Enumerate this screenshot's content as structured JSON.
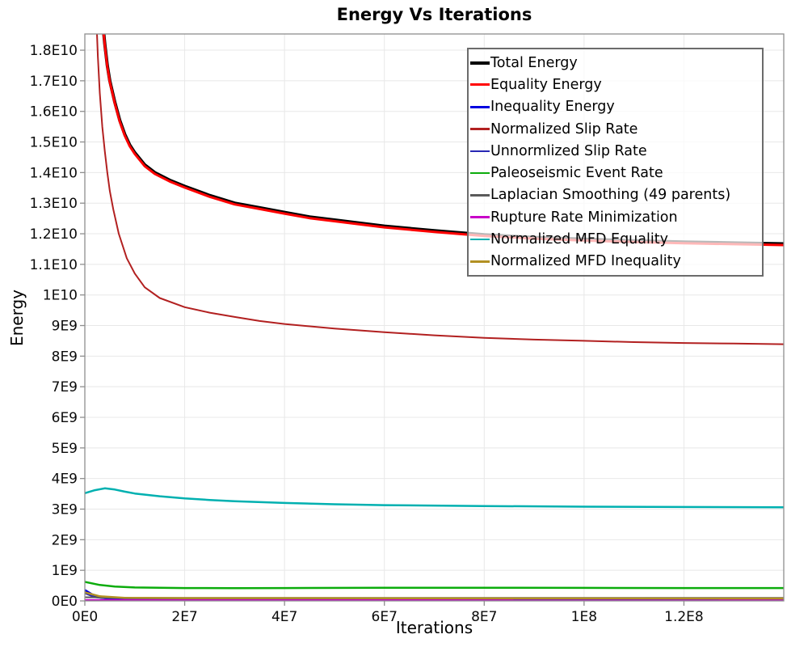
{
  "chart_data": {
    "type": "line",
    "title": "Energy Vs Iterations",
    "xlabel": "Iterations",
    "ylabel": "Energy",
    "xlim": [
      0,
      140000000
    ],
    "ylim": [
      0,
      18530000000
    ],
    "grid": true,
    "legend_position": "top-right",
    "x_ticks": [
      {
        "v": 0,
        "t": "0E0"
      },
      {
        "v": 20000000,
        "t": "2E7"
      },
      {
        "v": 40000000,
        "t": "4E7"
      },
      {
        "v": 60000000,
        "t": "6E7"
      },
      {
        "v": 80000000,
        "t": "8E7"
      },
      {
        "v": 100000000,
        "t": "1E8"
      },
      {
        "v": 120000000,
        "t": "1.2E8"
      }
    ],
    "y_ticks": [
      {
        "v": 0,
        "t": "0E0"
      },
      {
        "v": 1000000000.0,
        "t": "1E9"
      },
      {
        "v": 2000000000.0,
        "t": "2E9"
      },
      {
        "v": 3000000000.0,
        "t": "3E9"
      },
      {
        "v": 4000000000.0,
        "t": "4E9"
      },
      {
        "v": 5000000000.0,
        "t": "5E9"
      },
      {
        "v": 6000000000.0,
        "t": "6E9"
      },
      {
        "v": 7000000000.0,
        "t": "7E9"
      },
      {
        "v": 8000000000.0,
        "t": "8E9"
      },
      {
        "v": 9000000000.0,
        "t": "9E9"
      },
      {
        "v": 10000000000.0,
        "t": "1E10"
      },
      {
        "v": 11000000000.0,
        "t": "1.1E10"
      },
      {
        "v": 12000000000.0,
        "t": "1.2E10"
      },
      {
        "v": 13000000000.0,
        "t": "1.3E10"
      },
      {
        "v": 14000000000.0,
        "t": "1.4E10"
      },
      {
        "v": 15000000000.0,
        "t": "1.5E10"
      },
      {
        "v": 16000000000.0,
        "t": "1.6E10"
      },
      {
        "v": 17000000000.0,
        "t": "1.7E10"
      },
      {
        "v": 18000000000.0,
        "t": "1.8E10"
      }
    ],
    "series": [
      {
        "name": "Total Energy",
        "color": "#000000",
        "width": 4,
        "points": [
          [
            3200000.0,
            19500000000.0
          ],
          [
            4000000.0,
            18200000000.0
          ],
          [
            4500000.0,
            17500000000.0
          ],
          [
            5000000.0,
            17000000000.0
          ],
          [
            6000000.0,
            16300000000.0
          ],
          [
            7000000.0,
            15700000000.0
          ],
          [
            8000000.0,
            15250000000.0
          ],
          [
            9000000.0,
            14900000000.0
          ],
          [
            10000000.0,
            14650000000.0
          ],
          [
            12000000.0,
            14250000000.0
          ],
          [
            14000000.0,
            14000000000.0
          ],
          [
            17000000.0,
            13750000000.0
          ],
          [
            20000000.0,
            13550000000.0
          ],
          [
            25000000.0,
            13250000000.0
          ],
          [
            30000000.0,
            13000000000.0
          ],
          [
            35000000.0,
            12850000000.0
          ],
          [
            40000000.0,
            12700000000.0
          ],
          [
            45000000.0,
            12550000000.0
          ],
          [
            50000000.0,
            12450000000.0
          ],
          [
            60000000.0,
            12250000000.0
          ],
          [
            70000000.0,
            12100000000.0
          ],
          [
            80000000.0,
            11970000000.0
          ],
          [
            90000000.0,
            11880000000.0
          ],
          [
            100000000.0,
            11820000000.0
          ],
          [
            110000000.0,
            11770000000.0
          ],
          [
            120000000.0,
            11730000000.0
          ],
          [
            130000000.0,
            11700000000.0
          ],
          [
            140000000.0,
            11670000000.0
          ]
        ]
      },
      {
        "name": "Equality Energy",
        "color": "#ff0000",
        "width": 3,
        "points": [
          [
            3200000.0,
            19460000000.0
          ],
          [
            4000000.0,
            18160000000.0
          ],
          [
            4500000.0,
            17460000000.0
          ],
          [
            5000000.0,
            16960000000.0
          ],
          [
            6000000.0,
            16260000000.0
          ],
          [
            7000000.0,
            15660000000.0
          ],
          [
            8000000.0,
            15210000000.0
          ],
          [
            9000000.0,
            14860000000.0
          ],
          [
            10000000.0,
            14610000000.0
          ],
          [
            12000000.0,
            14210000000.0
          ],
          [
            14000000.0,
            13960000000.0
          ],
          [
            17000000.0,
            13710000000.0
          ],
          [
            20000000.0,
            13510000000.0
          ],
          [
            25000000.0,
            13210000000.0
          ],
          [
            30000000.0,
            12960000000.0
          ],
          [
            35000000.0,
            12810000000.0
          ],
          [
            40000000.0,
            12660000000.0
          ],
          [
            45000000.0,
            12510000000.0
          ],
          [
            50000000.0,
            12410000000.0
          ],
          [
            60000000.0,
            12210000000.0
          ],
          [
            70000000.0,
            12060000000.0
          ],
          [
            80000000.0,
            11930000000.0
          ],
          [
            90000000.0,
            11840000000.0
          ],
          [
            100000000.0,
            11780000000.0
          ],
          [
            110000000.0,
            11730000000.0
          ],
          [
            120000000.0,
            11690000000.0
          ],
          [
            130000000.0,
            11660000000.0
          ],
          [
            140000000.0,
            11630000000.0
          ]
        ]
      },
      {
        "name": "Inequality Energy",
        "color": "#0000e0",
        "width": 3,
        "points": [
          [
            0,
            350000000.0
          ],
          [
            1500000.0,
            200000000.0
          ],
          [
            3000000.0,
            120000000.0
          ],
          [
            5000000.0,
            80000000.0
          ],
          [
            10000000.0,
            60000000.0
          ],
          [
            20000000.0,
            50000000.0
          ],
          [
            140000000.0,
            50000000.0
          ]
        ]
      },
      {
        "name": "Normalized Slip Rate",
        "color": "#b22020",
        "width": 2,
        "points": [
          [
            2200000.0,
            19500000000.0
          ],
          [
            2600000.0,
            17800000000.0
          ],
          [
            3000000.0,
            16600000000.0
          ],
          [
            3500000.0,
            15500000000.0
          ],
          [
            4000000.0,
            14700000000.0
          ],
          [
            4500000.0,
            14000000000.0
          ],
          [
            5000000.0,
            13400000000.0
          ],
          [
            5700000.0,
            12800000000.0
          ],
          [
            6800000.0,
            12000000000.0
          ],
          [
            8400000.0,
            11200000000.0
          ],
          [
            10000000.0,
            10700000000.0
          ],
          [
            12000000.0,
            10250000000.0
          ],
          [
            15000000.0,
            9900000000.0
          ],
          [
            20000000.0,
            9600000000.0
          ],
          [
            25000000.0,
            9420000000.0
          ],
          [
            30000000.0,
            9280000000.0
          ],
          [
            35000000.0,
            9150000000.0
          ],
          [
            40000000.0,
            9050000000.0
          ],
          [
            50000000.0,
            8900000000.0
          ],
          [
            60000000.0,
            8780000000.0
          ],
          [
            70000000.0,
            8680000000.0
          ],
          [
            80000000.0,
            8600000000.0
          ],
          [
            90000000.0,
            8540000000.0
          ],
          [
            100000000.0,
            8500000000.0
          ],
          [
            110000000.0,
            8460000000.0
          ],
          [
            120000000.0,
            8430000000.0
          ],
          [
            130000000.0,
            8410000000.0
          ],
          [
            140000000.0,
            8390000000.0
          ]
        ]
      },
      {
        "name": "Unnormlized Slip Rate",
        "color": "#2828b4",
        "width": 2,
        "points": [
          [
            0,
            250000000.0
          ],
          [
            2000000.0,
            120000000.0
          ],
          [
            5000000.0,
            70000000.0
          ],
          [
            10000000.0,
            50000000.0
          ],
          [
            140000000.0,
            40000000.0
          ]
        ]
      },
      {
        "name": "Paleoseismic Event Rate",
        "color": "#0cac0c",
        "width": 2.5,
        "points": [
          [
            0,
            620000000.0
          ],
          [
            3000000.0,
            520000000.0
          ],
          [
            6000000.0,
            470000000.0
          ],
          [
            10000000.0,
            440000000.0
          ],
          [
            15000000.0,
            430000000.0
          ],
          [
            20000000.0,
            420000000.0
          ],
          [
            30000000.0,
            415000000.0
          ],
          [
            40000000.0,
            420000000.0
          ],
          [
            60000000.0,
            430000000.0
          ],
          [
            80000000.0,
            430000000.0
          ],
          [
            100000000.0,
            425000000.0
          ],
          [
            120000000.0,
            420000000.0
          ],
          [
            140000000.0,
            420000000.0
          ]
        ]
      },
      {
        "name": "Laplacian Smoothing (49 parents)",
        "color": "#5a5a5a",
        "width": 2,
        "points": [
          [
            0,
            120000000.0
          ],
          [
            10000000.0,
            100000000.0
          ],
          [
            140000000.0,
            100000000.0
          ]
        ]
      },
      {
        "name": "Rupture Rate Minimization",
        "color": "#c800c8",
        "width": 2,
        "points": [
          [
            0,
            30000000.0
          ],
          [
            140000000.0,
            20000000.0
          ]
        ]
      },
      {
        "name": "Normalized MFD Equality",
        "color": "#00b0b0",
        "width": 2.5,
        "points": [
          [
            0,
            3520000000.0
          ],
          [
            2000000.0,
            3620000000.0
          ],
          [
            4000000.0,
            3680000000.0
          ],
          [
            6000000.0,
            3640000000.0
          ],
          [
            8000000.0,
            3570000000.0
          ],
          [
            10000000.0,
            3510000000.0
          ],
          [
            15000000.0,
            3420000000.0
          ],
          [
            20000000.0,
            3350000000.0
          ],
          [
            25000000.0,
            3300000000.0
          ],
          [
            30000000.0,
            3260000000.0
          ],
          [
            40000000.0,
            3200000000.0
          ],
          [
            50000000.0,
            3160000000.0
          ],
          [
            60000000.0,
            3130000000.0
          ],
          [
            80000000.0,
            3100000000.0
          ],
          [
            100000000.0,
            3080000000.0
          ],
          [
            120000000.0,
            3070000000.0
          ],
          [
            140000000.0,
            3060000000.0
          ]
        ]
      },
      {
        "name": "Normalized MFD Inequality",
        "color": "#b29023",
        "width": 2.5,
        "points": [
          [
            0,
            280000000.0
          ],
          [
            3000000.0,
            150000000.0
          ],
          [
            8000000.0,
            100000000.0
          ],
          [
            20000000.0,
            90000000.0
          ],
          [
            140000000.0,
            80000000.0
          ]
        ]
      }
    ]
  },
  "colors": {
    "grid": "#e8e8e8",
    "axis_border": "#8e8e8e",
    "tick": "#8e8e8e",
    "legend_border": "#6b6b6b"
  }
}
